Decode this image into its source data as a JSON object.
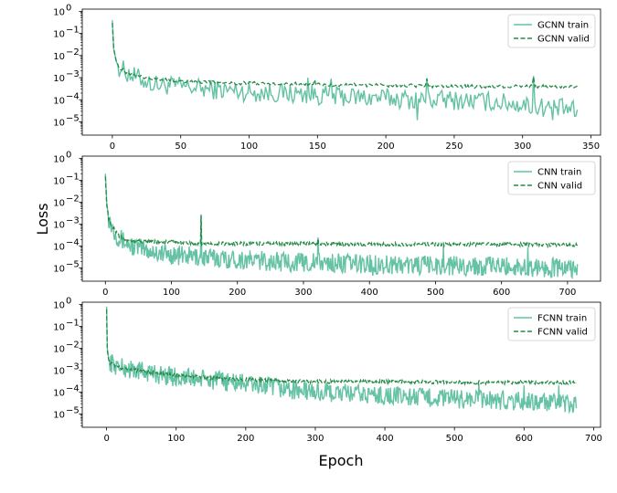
{
  "figure": {
    "xlabel": "Epoch",
    "ylabel": "Loss",
    "colors": {
      "train": "#66c2a5",
      "valid": "#238b45"
    }
  },
  "chart_data": [
    {
      "type": "line",
      "y_scale": "log",
      "xlim": [
        -22,
        357
      ],
      "ylim_exponent": [
        -5.6,
        0.1
      ],
      "x_ticks": [
        0,
        50,
        100,
        150,
        200,
        250,
        300,
        350
      ],
      "x_tick_labels": [
        "0",
        "50",
        "100",
        "150",
        "200",
        "250",
        "300",
        "350"
      ],
      "y_ticks_exponent": [
        0,
        -1,
        -2,
        -3,
        -4,
        -5
      ],
      "y_tick_labels": [
        "10",
        "10",
        "10",
        "10",
        "10",
        "10"
      ],
      "y_tick_sups": [
        "0",
        "−1",
        "−2",
        "−3",
        "−4",
        "−5"
      ],
      "legend_position": "top-right",
      "series": [
        {
          "name": "GCNN train",
          "style": "solid",
          "x": [
            0,
            1,
            3,
            5,
            10,
            15,
            20,
            25,
            30,
            40,
            50,
            60,
            70,
            80,
            90,
            100,
            120,
            140,
            160,
            180,
            200,
            220,
            240,
            260,
            280,
            300,
            310,
            320,
            330,
            340
          ],
          "y": [
            0.4,
            0.02,
            0.005,
            0.003,
            0.0018,
            0.0012,
            0.0009,
            0.0007,
            0.0005,
            0.00045,
            0.0004,
            0.00035,
            0.0003,
            0.00028,
            0.00025,
            0.00022,
            0.0002,
            0.00018,
            0.00015,
            0.00013,
            0.00012,
            0.0001,
            0.0001,
            9e-05,
            8e-05,
            6e-05,
            5e-05,
            4.5e-05,
            4e-05,
            3e-05
          ],
          "spikes": [
            [
              143,
              0.001
            ],
            [
              160,
              0.0009
            ],
            [
              230,
              0.00095
            ],
            [
              308,
              0.0012
            ]
          ],
          "dips": [
            [
              223,
              1.2e-05
            ],
            [
              322,
              1.2e-05
            ],
            [
              338,
              1.8e-05
            ]
          ]
        },
        {
          "name": "GCNN valid",
          "style": "dashed",
          "x": [
            0,
            1,
            3,
            5,
            10,
            20,
            30,
            50,
            75,
            100,
            150,
            200,
            250,
            300,
            340
          ],
          "y": [
            0.3,
            0.02,
            0.005,
            0.003,
            0.0018,
            0.0011,
            0.0009,
            0.0007,
            0.0006,
            0.00055,
            0.0005,
            0.00045,
            0.0004,
            0.0004,
            0.0004
          ],
          "spikes": [
            [
              148,
              0.0008
            ],
            [
              230,
              0.0009
            ],
            [
              308,
              0.0011
            ]
          ]
        }
      ]
    },
    {
      "type": "line",
      "y_scale": "log",
      "xlim": [
        -35,
        750
      ],
      "ylim_exponent": [
        -5.6,
        0.1
      ],
      "x_ticks": [
        0,
        100,
        200,
        300,
        400,
        500,
        600,
        700
      ],
      "x_tick_labels": [
        "0",
        "100",
        "200",
        "300",
        "400",
        "500",
        "600",
        "700"
      ],
      "y_ticks_exponent": [
        0,
        -1,
        -2,
        -3,
        -4,
        -5
      ],
      "y_tick_labels": [
        "10",
        "10",
        "10",
        "10",
        "10",
        "10"
      ],
      "y_tick_sups": [
        "0",
        "−1",
        "−2",
        "−3",
        "−4",
        "−5"
      ],
      "legend_position": "top-right",
      "series": [
        {
          "name": "CNN train",
          "style": "solid",
          "x": [
            0,
            2,
            5,
            10,
            15,
            20,
            30,
            40,
            60,
            80,
            100,
            150,
            200,
            250,
            300,
            400,
            500,
            600,
            700,
            715
          ],
          "y": [
            0.2,
            0.01,
            0.002,
            0.0008,
            0.0004,
            0.00025,
            0.00015,
            0.0001,
            7e-05,
            5e-05,
            4e-05,
            3e-05,
            2.5e-05,
            2e-05,
            1.8e-05,
            1.5e-05,
            1.3e-05,
            1.2e-05,
            1e-05,
            1e-05
          ],
          "spikes": [
            [
              145,
              0.0028
            ],
            [
              322,
              0.00025
            ],
            [
              512,
              0.0001
            ],
            [
              640,
              9e-05
            ]
          ],
          "dips": [
            [
              405,
              4.5e-06
            ],
            [
              693,
              5e-06
            ]
          ]
        },
        {
          "name": "CNN valid",
          "style": "dashed",
          "x": [
            0,
            2,
            5,
            10,
            15,
            20,
            30,
            40,
            60,
            80,
            100,
            150,
            200,
            300,
            400,
            500,
            600,
            715
          ],
          "y": [
            0.15,
            0.008,
            0.0018,
            0.0008,
            0.0005,
            0.0003,
            0.0002,
            0.00018,
            0.00016,
            0.00015,
            0.00015,
            0.00013,
            0.00013,
            0.00013,
            0.00012,
            0.00012,
            0.00012,
            0.00011
          ],
          "spikes": [
            [
              145,
              0.0025
            ],
            [
              322,
              0.00022
            ]
          ]
        }
      ]
    },
    {
      "type": "line",
      "y_scale": "log",
      "xlim": [
        -35,
        710
      ],
      "ylim_exponent": [
        -5.6,
        0.1
      ],
      "x_ticks": [
        0,
        100,
        200,
        300,
        400,
        500,
        600,
        700
      ],
      "x_tick_labels": [
        "0",
        "100",
        "200",
        "300",
        "400",
        "500",
        "600",
        "700"
      ],
      "y_ticks_exponent": [
        0,
        -1,
        -2,
        -3,
        -4,
        -5
      ],
      "y_tick_labels": [
        "10",
        "10",
        "10",
        "10",
        "10",
        "10"
      ],
      "y_tick_sups": [
        "0",
        "−1",
        "−2",
        "−3",
        "−4",
        "−5"
      ],
      "legend_position": "top-right",
      "series": [
        {
          "name": "FCNN train",
          "style": "solid",
          "x": [
            0,
            1,
            3,
            5,
            10,
            20,
            40,
            60,
            80,
            100,
            150,
            200,
            250,
            300,
            400,
            500,
            600,
            675
          ],
          "y": [
            0.8,
            0.01,
            0.003,
            0.0025,
            0.0018,
            0.0013,
            0.001,
            0.0008,
            0.0006,
            0.0005,
            0.00035,
            0.00025,
            0.00015,
            0.0001,
            7e-05,
            5e-05,
            4e-05,
            2.5e-05
          ],
          "spikes": [
            [
              155,
              0.0006
            ],
            [
              535,
              0.00025
            ],
            [
              600,
              0.0002
            ],
            [
              650,
              0.0002
            ]
          ],
          "dips": [
            [
              598,
              1.5e-05
            ]
          ]
        },
        {
          "name": "FCNN valid",
          "style": "dashed",
          "x": [
            0,
            1,
            3,
            5,
            10,
            20,
            40,
            60,
            80,
            100,
            150,
            200,
            250,
            300,
            400,
            500,
            600,
            675
          ],
          "y": [
            0.6,
            0.008,
            0.003,
            0.0022,
            0.0017,
            0.0013,
            0.001,
            0.0008,
            0.0007,
            0.0006,
            0.00045,
            0.00038,
            0.00033,
            0.0003,
            0.0003,
            0.00028,
            0.00028,
            0.00027
          ]
        }
      ]
    }
  ]
}
